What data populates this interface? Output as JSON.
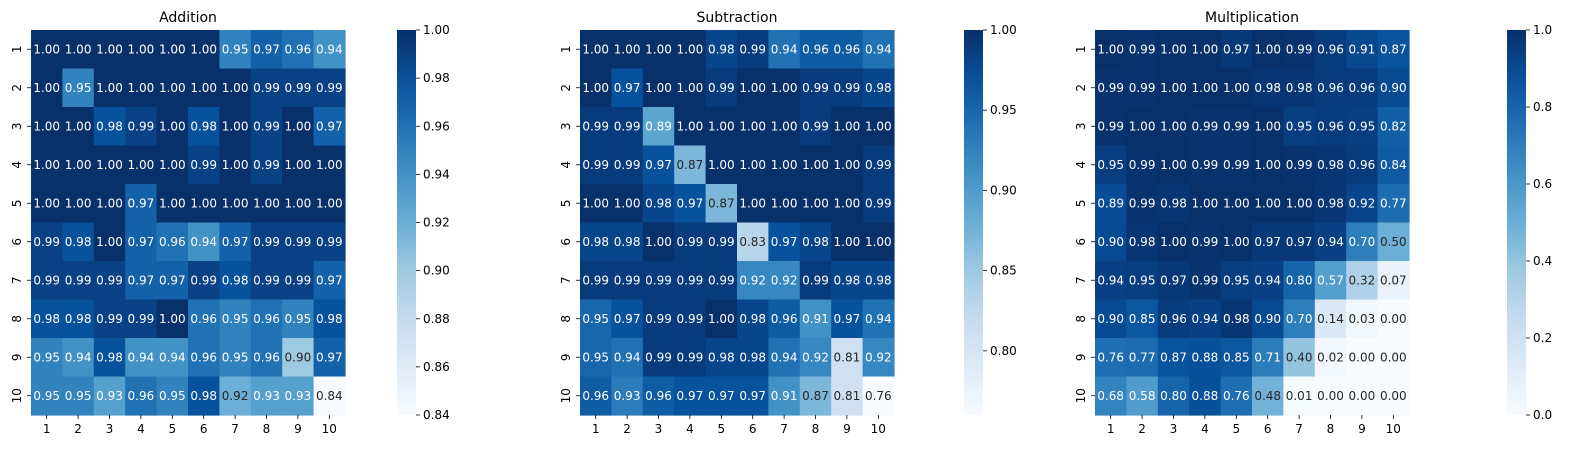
{
  "chart_data": [
    {
      "type": "heatmap",
      "title": "Addition",
      "x": [
        "1",
        "2",
        "3",
        "4",
        "5",
        "6",
        "7",
        "8",
        "9",
        "10"
      ],
      "y": [
        "1",
        "2",
        "3",
        "4",
        "5",
        "6",
        "7",
        "8",
        "9",
        "10"
      ],
      "vmin": 0.84,
      "vmax": 1.0,
      "colorbar_ticks": [
        "0.84",
        "0.86",
        "0.88",
        "0.90",
        "0.92",
        "0.94",
        "0.96",
        "0.98",
        "1.00"
      ],
      "values": [
        [
          1.0,
          1.0,
          1.0,
          1.0,
          1.0,
          1.0,
          0.95,
          0.97,
          0.96,
          0.94
        ],
        [
          1.0,
          0.95,
          1.0,
          1.0,
          1.0,
          1.0,
          1.0,
          0.99,
          0.99,
          0.99
        ],
        [
          1.0,
          1.0,
          0.98,
          0.99,
          1.0,
          0.98,
          1.0,
          0.99,
          1.0,
          0.97
        ],
        [
          1.0,
          1.0,
          1.0,
          1.0,
          1.0,
          0.99,
          1.0,
          0.99,
          1.0,
          1.0
        ],
        [
          1.0,
          1.0,
          1.0,
          0.97,
          1.0,
          1.0,
          1.0,
          1.0,
          1.0,
          1.0
        ],
        [
          0.99,
          0.98,
          1.0,
          0.97,
          0.96,
          0.94,
          0.97,
          0.99,
          0.99,
          0.99
        ],
        [
          0.99,
          0.99,
          0.99,
          0.97,
          0.97,
          0.99,
          0.98,
          0.99,
          0.99,
          0.97
        ],
        [
          0.98,
          0.98,
          0.99,
          0.99,
          1.0,
          0.96,
          0.95,
          0.96,
          0.95,
          0.98
        ],
        [
          0.95,
          0.94,
          0.98,
          0.94,
          0.94,
          0.96,
          0.95,
          0.96,
          0.9,
          0.97
        ],
        [
          0.95,
          0.95,
          0.93,
          0.96,
          0.95,
          0.98,
          0.92,
          0.93,
          0.93,
          0.84
        ]
      ]
    },
    {
      "type": "heatmap",
      "title": "Subtraction",
      "x": [
        "1",
        "2",
        "3",
        "4",
        "5",
        "6",
        "7",
        "8",
        "9",
        "10"
      ],
      "y": [
        "1",
        "2",
        "3",
        "4",
        "5",
        "6",
        "7",
        "8",
        "9",
        "10"
      ],
      "vmin": 0.76,
      "vmax": 1.0,
      "colorbar_ticks": [
        "0.80",
        "0.85",
        "0.90",
        "0.95",
        "1.00"
      ],
      "values": [
        [
          1.0,
          1.0,
          1.0,
          1.0,
          0.98,
          0.99,
          0.94,
          0.96,
          0.96,
          0.94
        ],
        [
          1.0,
          0.97,
          1.0,
          1.0,
          0.99,
          1.0,
          1.0,
          0.99,
          0.99,
          0.98
        ],
        [
          0.99,
          0.99,
          0.89,
          1.0,
          1.0,
          1.0,
          1.0,
          0.99,
          1.0,
          1.0
        ],
        [
          0.99,
          0.99,
          0.97,
          0.87,
          1.0,
          1.0,
          1.0,
          1.0,
          1.0,
          0.99
        ],
        [
          1.0,
          1.0,
          0.98,
          0.97,
          0.87,
          1.0,
          1.0,
          1.0,
          1.0,
          0.99
        ],
        [
          0.98,
          0.98,
          1.0,
          0.99,
          0.99,
          0.83,
          0.97,
          0.98,
          1.0,
          1.0
        ],
        [
          0.99,
          0.99,
          0.99,
          0.99,
          0.99,
          0.92,
          0.92,
          0.99,
          0.98,
          0.98
        ],
        [
          0.95,
          0.97,
          0.99,
          0.99,
          1.0,
          0.98,
          0.96,
          0.91,
          0.97,
          0.94
        ],
        [
          0.95,
          0.94,
          0.99,
          0.99,
          0.98,
          0.98,
          0.94,
          0.92,
          0.81,
          0.92
        ],
        [
          0.96,
          0.93,
          0.96,
          0.97,
          0.97,
          0.97,
          0.91,
          0.87,
          0.81,
          0.76
        ]
      ]
    },
    {
      "type": "heatmap",
      "title": "Multiplication",
      "x": [
        "1",
        "2",
        "3",
        "4",
        "5",
        "6",
        "7",
        "8",
        "9",
        "10"
      ],
      "y": [
        "1",
        "2",
        "3",
        "4",
        "5",
        "6",
        "7",
        "8",
        "9",
        "10"
      ],
      "vmin": 0.0,
      "vmax": 1.0,
      "colorbar_ticks": [
        "0.0",
        "0.2",
        "0.4",
        "0.6",
        "0.8",
        "1.0"
      ],
      "values": [
        [
          1.0,
          0.99,
          1.0,
          1.0,
          0.97,
          1.0,
          0.99,
          0.96,
          0.91,
          0.87
        ],
        [
          0.99,
          0.99,
          1.0,
          1.0,
          1.0,
          0.98,
          0.98,
          0.96,
          0.96,
          0.9
        ],
        [
          0.99,
          1.0,
          1.0,
          0.99,
          0.99,
          1.0,
          0.95,
          0.96,
          0.95,
          0.82
        ],
        [
          0.95,
          0.99,
          1.0,
          0.99,
          0.99,
          1.0,
          0.99,
          0.98,
          0.96,
          0.84
        ],
        [
          0.89,
          0.99,
          0.98,
          1.0,
          1.0,
          1.0,
          1.0,
          0.98,
          0.92,
          0.77
        ],
        [
          0.9,
          0.98,
          1.0,
          0.99,
          1.0,
          0.97,
          0.97,
          0.94,
          0.7,
          0.5
        ],
        [
          0.94,
          0.95,
          0.97,
          0.99,
          0.95,
          0.94,
          0.8,
          0.57,
          0.32,
          0.07
        ],
        [
          0.9,
          0.85,
          0.96,
          0.94,
          0.98,
          0.9,
          0.7,
          0.14,
          0.03,
          0.0
        ],
        [
          0.76,
          0.77,
          0.87,
          0.88,
          0.85,
          0.71,
          0.4,
          0.02,
          0.0,
          0.0
        ],
        [
          0.68,
          0.58,
          0.8,
          0.88,
          0.76,
          0.48,
          0.01,
          0.0,
          0.0,
          0.0
        ]
      ]
    }
  ]
}
